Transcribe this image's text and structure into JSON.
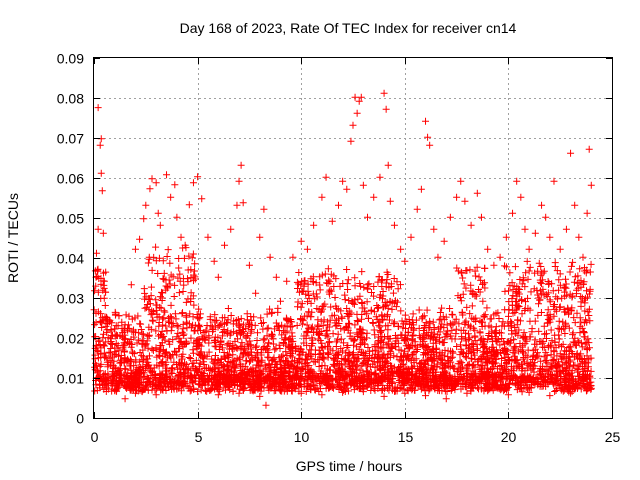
{
  "chart_data": {
    "type": "scatter",
    "title": "Day 168 of 2023, Rate Of TEC Index for receiver cn14",
    "xlabel": "GPS time / hours",
    "ylabel": "ROTI / TECUs",
    "xlim": [
      0,
      25
    ],
    "ylim": [
      0,
      0.09
    ],
    "x_ticks": [
      "0",
      "5",
      "10",
      "15",
      "20",
      "25"
    ],
    "y_ticks": [
      "0",
      "0.01",
      "0.02",
      "0.03",
      "0.04",
      "0.05",
      "0.06",
      "0.07",
      "0.08",
      "0.09"
    ],
    "grid": true,
    "marker": "+",
    "color": "#ff0000",
    "series": [
      {
        "points": [
          [
            0.05,
            0.0148
          ],
          [
            0.1,
            0.0352
          ],
          [
            0.12,
            0.0412
          ],
          [
            0.2,
            0.0472
          ],
          [
            0.2,
            0.0776
          ],
          [
            0.3,
            0.0682
          ],
          [
            0.35,
            0.0698
          ],
          [
            0.35,
            0.0612
          ],
          [
            0.4,
            0.0568
          ],
          [
            0.45,
            0.0462
          ],
          [
            0.5,
            0.0342
          ],
          [
            0.6,
            0.0252
          ],
          [
            0.8,
            0.0198
          ],
          [
            1.0,
            0.0175
          ],
          [
            1.2,
            0.0168
          ],
          [
            1.5,
            0.0233
          ],
          [
            1.8,
            0.0333
          ],
          [
            2.0,
            0.0422
          ],
          [
            2.2,
            0.0447
          ],
          [
            2.4,
            0.0498
          ],
          [
            2.5,
            0.0532
          ],
          [
            2.7,
            0.0573
          ],
          [
            2.8,
            0.0598
          ],
          [
            3.0,
            0.0588
          ],
          [
            3.1,
            0.0512
          ],
          [
            3.2,
            0.0482
          ],
          [
            3.5,
            0.0608
          ],
          [
            3.7,
            0.0552
          ],
          [
            3.9,
            0.0583
          ],
          [
            4.0,
            0.0502
          ],
          [
            4.2,
            0.0452
          ],
          [
            4.4,
            0.0432
          ],
          [
            4.6,
            0.0533
          ],
          [
            4.8,
            0.0588
          ],
          [
            5.0,
            0.0603
          ],
          [
            5.2,
            0.0548
          ],
          [
            5.5,
            0.0452
          ],
          [
            5.8,
            0.0392
          ],
          [
            6.0,
            0.0352
          ],
          [
            6.3,
            0.0432
          ],
          [
            6.6,
            0.0472
          ],
          [
            6.9,
            0.0532
          ],
          [
            7.0,
            0.0592
          ],
          [
            7.1,
            0.0632
          ],
          [
            7.2,
            0.0538
          ],
          [
            7.5,
            0.0382
          ],
          [
            7.8,
            0.0312
          ],
          [
            8.0,
            0.0452
          ],
          [
            8.2,
            0.0522
          ],
          [
            8.3,
            0.0032
          ],
          [
            8.5,
            0.0402
          ],
          [
            8.8,
            0.0352
          ],
          [
            9.0,
            0.0292
          ],
          [
            9.3,
            0.0342
          ],
          [
            9.6,
            0.0402
          ],
          [
            10.0,
            0.0442
          ],
          [
            10.3,
            0.0422
          ],
          [
            10.6,
            0.0482
          ],
          [
            11.0,
            0.0552
          ],
          [
            11.2,
            0.0602
          ],
          [
            11.5,
            0.0492
          ],
          [
            11.8,
            0.0532
          ],
          [
            12.0,
            0.0592
          ],
          [
            12.2,
            0.0572
          ],
          [
            12.4,
            0.0692
          ],
          [
            12.5,
            0.0732
          ],
          [
            12.6,
            0.0802
          ],
          [
            12.7,
            0.0762
          ],
          [
            12.8,
            0.0792
          ],
          [
            12.9,
            0.0802
          ],
          [
            13.0,
            0.0582
          ],
          [
            13.2,
            0.0502
          ],
          [
            13.5,
            0.0552
          ],
          [
            13.8,
            0.0602
          ],
          [
            14.0,
            0.0812
          ],
          [
            14.1,
            0.0772
          ],
          [
            14.2,
            0.0632
          ],
          [
            14.3,
            0.0542
          ],
          [
            14.5,
            0.0482
          ],
          [
            14.8,
            0.0422
          ],
          [
            15.0,
            0.0392
          ],
          [
            15.3,
            0.0452
          ],
          [
            15.6,
            0.0522
          ],
          [
            15.8,
            0.0572
          ],
          [
            16.0,
            0.0742
          ],
          [
            16.1,
            0.0702
          ],
          [
            16.2,
            0.0682
          ],
          [
            16.4,
            0.0472
          ],
          [
            16.6,
            0.0402
          ],
          [
            16.9,
            0.0442
          ],
          [
            17.2,
            0.0502
          ],
          [
            17.5,
            0.0552
          ],
          [
            17.7,
            0.0592
          ],
          [
            17.9,
            0.0542
          ],
          [
            18.2,
            0.0482
          ],
          [
            18.5,
            0.0562
          ],
          [
            18.7,
            0.0502
          ],
          [
            19.0,
            0.0422
          ],
          [
            19.3,
            0.0382
          ],
          [
            19.6,
            0.0402
          ],
          [
            19.9,
            0.0452
          ],
          [
            20.2,
            0.0512
          ],
          [
            20.4,
            0.0592
          ],
          [
            20.6,
            0.0552
          ],
          [
            20.8,
            0.0472
          ],
          [
            21.0,
            0.0422
          ],
          [
            21.3,
            0.0462
          ],
          [
            21.6,
            0.0532
          ],
          [
            21.8,
            0.0502
          ],
          [
            22.0,
            0.0452
          ],
          [
            22.2,
            0.0592
          ],
          [
            22.5,
            0.0422
          ],
          [
            22.8,
            0.0472
          ],
          [
            23.0,
            0.0662
          ],
          [
            23.2,
            0.0532
          ],
          [
            23.4,
            0.0452
          ],
          [
            23.6,
            0.0402
          ],
          [
            23.8,
            0.0512
          ],
          [
            23.9,
            0.0672
          ],
          [
            24.0,
            0.0582
          ],
          [
            0.5,
            0.0082
          ],
          [
            1.0,
            0.0068
          ],
          [
            1.5,
            0.0048
          ],
          [
            2.0,
            0.0062
          ],
          [
            3.0,
            0.0058
          ],
          [
            4.0,
            0.0072
          ],
          [
            5.0,
            0.0066
          ],
          [
            6.0,
            0.0058
          ],
          [
            7.0,
            0.0062
          ],
          [
            8.0,
            0.0054
          ],
          [
            9.0,
            0.0068
          ],
          [
            10.0,
            0.0062
          ],
          [
            11.0,
            0.0058
          ],
          [
            12.0,
            0.0064
          ],
          [
            13.0,
            0.0066
          ],
          [
            14.0,
            0.0054
          ],
          [
            15.0,
            0.0062
          ],
          [
            16.0,
            0.0056
          ],
          [
            17.0,
            0.0048
          ],
          [
            18.0,
            0.0062
          ],
          [
            19.0,
            0.0068
          ],
          [
            20.0,
            0.0058
          ],
          [
            21.0,
            0.0064
          ],
          [
            22.0,
            0.0056
          ],
          [
            23.0,
            0.0062
          ],
          [
            24.0,
            0.0074
          ],
          [
            0.3,
            0.0118
          ],
          [
            0.8,
            0.0132
          ],
          [
            1.3,
            0.0108
          ],
          [
            1.8,
            0.0142
          ],
          [
            2.3,
            0.0156
          ],
          [
            2.8,
            0.0172
          ],
          [
            3.3,
            0.0188
          ],
          [
            3.8,
            0.0196
          ],
          [
            4.3,
            0.0178
          ],
          [
            4.8,
            0.0162
          ],
          [
            5.3,
            0.0148
          ],
          [
            5.8,
            0.0136
          ],
          [
            6.3,
            0.0152
          ],
          [
            6.8,
            0.0144
          ],
          [
            7.3,
            0.0128
          ],
          [
            7.8,
            0.0118
          ],
          [
            8.3,
            0.0122
          ],
          [
            8.8,
            0.0134
          ],
          [
            9.3,
            0.0142
          ],
          [
            9.8,
            0.0126
          ],
          [
            10.3,
            0.0138
          ],
          [
            10.8,
            0.0146
          ],
          [
            11.3,
            0.0152
          ],
          [
            11.8,
            0.0158
          ],
          [
            12.3,
            0.0164
          ],
          [
            12.8,
            0.0172
          ],
          [
            13.3,
            0.0156
          ],
          [
            13.8,
            0.0148
          ],
          [
            14.3,
            0.0162
          ],
          [
            14.8,
            0.0154
          ],
          [
            15.3,
            0.0144
          ],
          [
            15.8,
            0.0138
          ],
          [
            16.3,
            0.0132
          ],
          [
            16.8,
            0.0146
          ],
          [
            17.3,
            0.0152
          ],
          [
            17.8,
            0.0164
          ],
          [
            18.3,
            0.0172
          ],
          [
            18.8,
            0.0158
          ],
          [
            19.3,
            0.0148
          ],
          [
            19.8,
            0.0162
          ],
          [
            20.3,
            0.0178
          ],
          [
            20.8,
            0.0186
          ],
          [
            21.3,
            0.0172
          ],
          [
            21.8,
            0.0164
          ],
          [
            22.3,
            0.0176
          ],
          [
            22.8,
            0.0168
          ],
          [
            23.3,
            0.0158
          ],
          [
            23.8,
            0.0172
          ]
        ]
      }
    ]
  }
}
